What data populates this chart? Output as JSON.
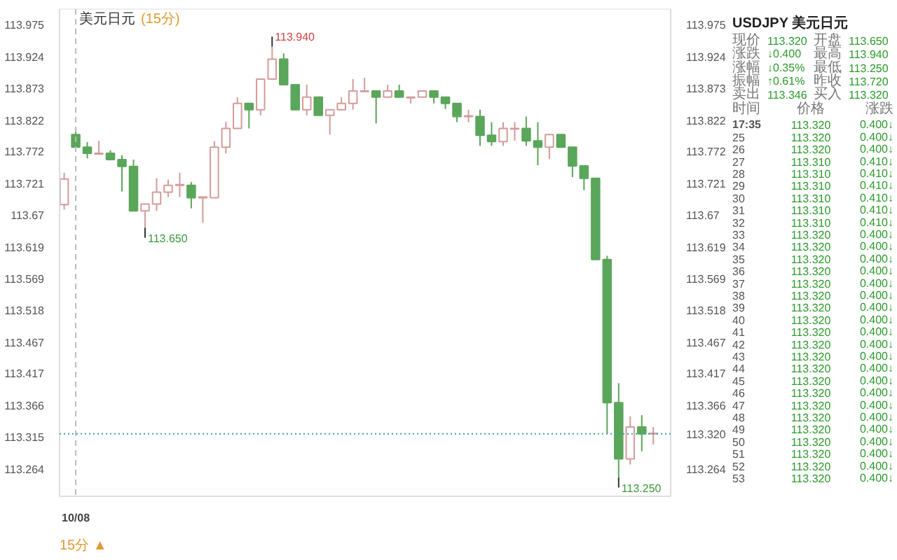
{
  "chart_data": {
    "type": "candlestick",
    "title": "美元日元",
    "subtitle": "(15分)",
    "categories": [
      null,
      "10/08",
      null,
      null,
      null,
      null,
      null,
      null,
      null,
      null,
      null,
      null,
      null,
      null,
      null,
      null,
      null,
      null,
      null,
      null,
      null,
      null,
      null,
      null,
      null,
      null,
      null,
      null,
      null,
      null,
      null,
      null,
      null,
      null,
      null,
      null,
      null,
      null,
      null,
      null,
      null,
      null,
      null,
      null,
      null,
      null,
      null,
      null,
      null,
      null,
      null,
      null
    ],
    "ohlc": [
      [
        113.687,
        113.738,
        113.679,
        113.728
      ],
      [
        113.799,
        113.808,
        113.779,
        113.779
      ],
      [
        113.779,
        113.787,
        113.761,
        113.769
      ],
      [
        113.768,
        113.789,
        113.768,
        113.769
      ],
      [
        113.769,
        113.774,
        113.759,
        113.759
      ],
      [
        113.759,
        113.766,
        113.708,
        113.748
      ],
      [
        113.748,
        113.759,
        113.677,
        113.677
      ],
      [
        113.677,
        113.688,
        113.65,
        113.688
      ],
      [
        113.688,
        113.729,
        113.677,
        113.707
      ],
      [
        113.707,
        113.727,
        113.699,
        113.718
      ],
      [
        113.718,
        113.738,
        113.699,
        113.719
      ],
      [
        113.718,
        113.723,
        113.681,
        113.698
      ],
      [
        113.698,
        113.699,
        113.658,
        113.699
      ],
      [
        113.698,
        113.789,
        113.698,
        113.779
      ],
      [
        113.779,
        113.82,
        113.769,
        113.809
      ],
      [
        113.809,
        113.859,
        113.809,
        113.849
      ],
      [
        113.849,
        113.849,
        113.809,
        113.839
      ],
      [
        113.839,
        113.888,
        113.83,
        113.888
      ],
      [
        113.888,
        113.94,
        113.888,
        113.92
      ],
      [
        113.92,
        113.929,
        113.879,
        113.879
      ],
      [
        113.879,
        113.879,
        113.839,
        113.839
      ],
      [
        113.839,
        113.879,
        113.83,
        113.859
      ],
      [
        113.859,
        113.859,
        113.83,
        113.83
      ],
      [
        113.83,
        113.839,
        113.799,
        113.839
      ],
      [
        113.839,
        113.859,
        113.839,
        113.849
      ],
      [
        113.849,
        113.888,
        113.839,
        113.869
      ],
      [
        113.868,
        113.89,
        113.868,
        113.869
      ],
      [
        113.869,
        113.869,
        113.817,
        113.859
      ],
      [
        113.859,
        113.879,
        113.859,
        113.869
      ],
      [
        113.869,
        113.879,
        113.859,
        113.859
      ],
      [
        113.858,
        113.859,
        113.849,
        113.859
      ],
      [
        113.859,
        113.869,
        113.859,
        113.869
      ],
      [
        113.869,
        113.869,
        113.849,
        113.859
      ],
      [
        113.859,
        113.859,
        113.84,
        113.849
      ],
      [
        113.849,
        113.849,
        113.819,
        113.828
      ],
      [
        113.828,
        113.839,
        113.819,
        113.829
      ],
      [
        113.828,
        113.839,
        113.781,
        113.798
      ],
      [
        113.798,
        113.819,
        113.781,
        113.788
      ],
      [
        113.788,
        113.819,
        113.781,
        113.809
      ],
      [
        113.808,
        113.819,
        113.789,
        113.809
      ],
      [
        113.809,
        113.828,
        113.781,
        113.789
      ],
      [
        113.789,
        113.819,
        113.75,
        113.779
      ],
      [
        113.779,
        113.799,
        113.76,
        113.799
      ],
      [
        113.799,
        113.799,
        113.779,
        113.779
      ],
      [
        113.779,
        113.779,
        113.731,
        113.749
      ],
      [
        113.749,
        113.749,
        113.71,
        113.729
      ],
      [
        113.729,
        113.729,
        113.599,
        113.599
      ],
      [
        113.599,
        113.605,
        113.32,
        113.37
      ],
      [
        113.37,
        113.401,
        113.25,
        113.28
      ],
      [
        113.28,
        113.348,
        113.271,
        113.331
      ],
      [
        113.331,
        113.35,
        113.292,
        113.32
      ],
      [
        113.32,
        113.331,
        113.303,
        113.321
      ]
    ],
    "colors": [
      "#d49a9a",
      "#5aa65a",
      "#5aa65a",
      "#d49a9a",
      "#5aa65a",
      "#5aa65a",
      "#5aa65a",
      "#d49a9a",
      "#d49a9a",
      "#d49a9a",
      "#d49a9a",
      "#5aa65a",
      "#d49a9a",
      "#d49a9a",
      "#d49a9a",
      "#d49a9a",
      "#5aa65a",
      "#d49a9a",
      "#d49a9a",
      "#5aa65a",
      "#5aa65a",
      "#d49a9a",
      "#5aa65a",
      "#d49a9a",
      "#d49a9a",
      "#d49a9a",
      "#d49a9a",
      "#5aa65a",
      "#d49a9a",
      "#5aa65a",
      "#d49a9a",
      "#d49a9a",
      "#5aa65a",
      "#5aa65a",
      "#5aa65a",
      "#d49a9a",
      "#5aa65a",
      "#5aa65a",
      "#d49a9a",
      "#d49a9a",
      "#5aa65a",
      "#5aa65a",
      "#d49a9a",
      "#5aa65a",
      "#5aa65a",
      "#5aa65a",
      "#5aa65a",
      "#5aa65a",
      "#5aa65a",
      "#d49a9a",
      "#5aa65a",
      "#d49a9a"
    ],
    "ylim": [
      113.22,
      114.0
    ],
    "yticks": [
      113.975,
      113.924,
      113.873,
      113.822,
      113.772,
      113.721,
      113.67,
      113.619,
      113.569,
      113.518,
      113.467,
      113.417,
      113.366,
      113.315,
      113.264
    ],
    "y2lim": [
      113.22,
      114.0
    ],
    "y2ticks": [
      113.975,
      113.924,
      113.873,
      113.822,
      113.772,
      113.721,
      113.67,
      113.619,
      113.569,
      113.518,
      113.467,
      113.417,
      113.366,
      113.264
    ],
    "ref_lines": [
      {
        "axis": "y",
        "value": 113.32,
        "label": "113.320",
        "color": "#3aa0a0",
        "line_style": "dotted"
      },
      {
        "axis": "x",
        "value": "10/08",
        "color": "#bbbbbb",
        "line_style": "dashed"
      }
    ],
    "annotations": [
      "15分 ▲",
      "113.940",
      "113.650",
      "113.250",
      "USDJPY 美元日元",
      "现价",
      "113.320",
      "开盘",
      "113.650",
      "涨跌",
      "↓0.400",
      "最高",
      "113.940",
      "涨幅",
      "↓0.35%",
      "最低",
      "113.250",
      "振幅",
      "↑0.61%",
      "昨收",
      "113.720",
      "卖出",
      "113.346",
      "买入",
      "113.320",
      "时间",
      "价格",
      "涨跌",
      "17:35",
      "113.320",
      "0.400↓",
      "25",
      "113.320",
      "0.400↓",
      "26",
      "113.320",
      "0.400↓",
      "27",
      "113.310",
      "0.410↓",
      "28",
      "113.310",
      "0.410↓",
      "29",
      "113.310",
      "0.410↓",
      "30",
      "113.310",
      "0.410↓",
      "31",
      "113.310",
      "0.410↓",
      "32",
      "113.310",
      "0.410↓",
      "33",
      "113.320",
      "0.400↓",
      "34",
      "113.320",
      "0.400↓",
      "35",
      "113.320",
      "0.400↓",
      "36",
      "113.320",
      "0.400↓",
      "37",
      "113.320",
      "0.400↓",
      "38",
      "113.320",
      "0.400↓",
      "39",
      "113.320",
      "0.400↓",
      "40",
      "113.320",
      "0.400↓",
      "41",
      "113.320",
      "0.400↓",
      "42",
      "113.320",
      "0.400↓",
      "43",
      "113.320",
      "0.400↓",
      "44",
      "113.320",
      "0.400↓",
      "45",
      "113.320",
      "0.400↓",
      "46",
      "113.320",
      "0.400↓",
      "47",
      "113.320",
      "0.400↓",
      "48",
      "113.320",
      "0.400↓",
      "49",
      "113.320",
      "0.400↓",
      "50",
      "113.320",
      "0.400↓",
      "51",
      "113.320",
      "0.400↓",
      "52",
      "113.320",
      "0.400↓",
      "53",
      "113.320",
      "0.400↓"
    ]
  }
}
